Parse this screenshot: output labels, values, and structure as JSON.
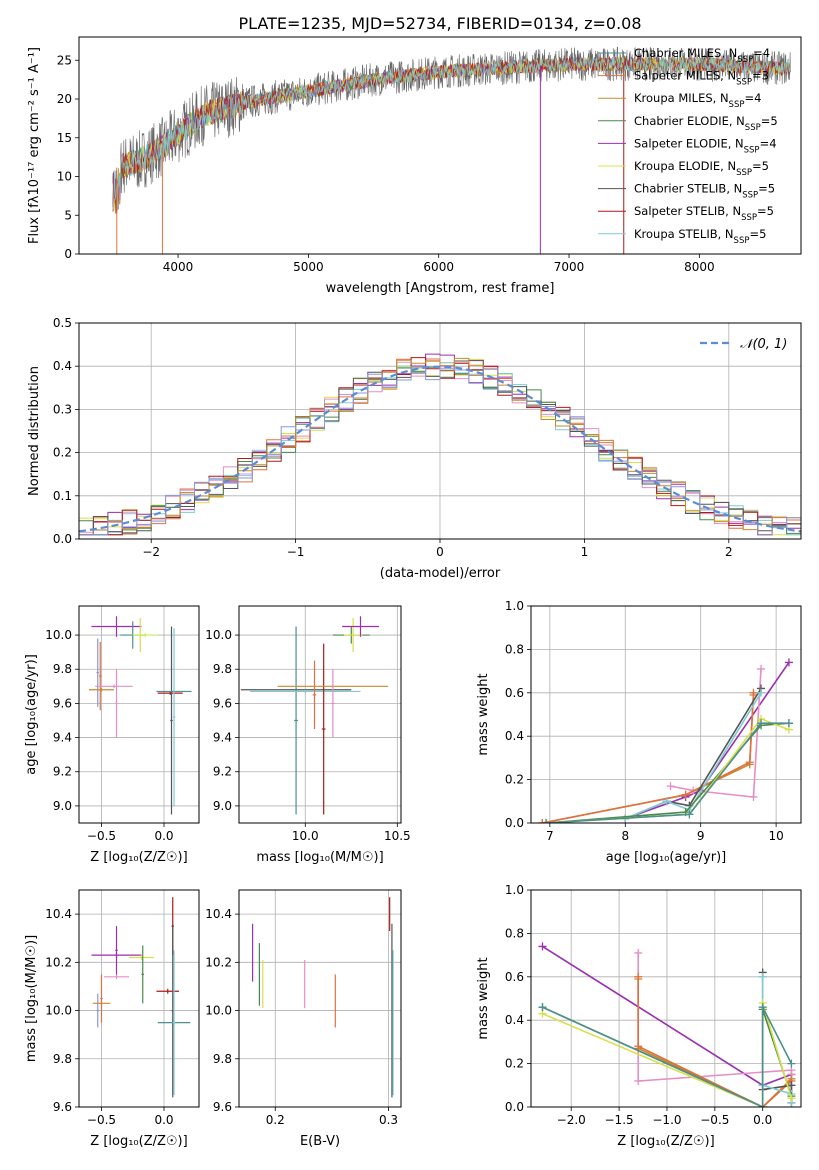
{
  "figure_title": "PLATE=1235, MJD=52734, FIBERID=0134, z=0.08",
  "colors": {
    "axis": "#000000",
    "grid": "#b0b0b0",
    "gauss": "#5b8dd6"
  },
  "chart_data": [
    {
      "id": "spectrum",
      "type": "line",
      "title": "PLATE=1235, MJD=52734, FIBERID=0134, z=0.08",
      "xlabel": "wavelength [Angstrom, rest frame]",
      "ylabel": "Flux [fλ10⁻¹⁷ erg cm⁻² s⁻¹ A⁻¹]",
      "xlim": [
        3240,
        8780
      ],
      "ylim": [
        0,
        28
      ],
      "xticks": [
        4000,
        5000,
        6000,
        7000,
        8000
      ],
      "yticks": [
        0,
        5,
        10,
        15,
        20,
        25
      ],
      "grid": false,
      "legend_position": "top-right",
      "continuum": [
        [
          3500,
          11
        ],
        [
          3700,
          12
        ],
        [
          3900,
          14
        ],
        [
          4000,
          15.5
        ],
        [
          4200,
          18
        ],
        [
          4500,
          19.5
        ],
        [
          5000,
          21
        ],
        [
          5500,
          22.5
        ],
        [
          6000,
          23.5
        ],
        [
          6500,
          24
        ],
        [
          7000,
          24.5
        ],
        [
          7500,
          24.5
        ],
        [
          8000,
          24.5
        ],
        [
          8500,
          24
        ]
      ],
      "series": [
        {
          "name": "Chabrier MILES, N_SSP=4",
          "color": "#4e8f8f"
        },
        {
          "name": "Salpeter MILES, N_SSP=3",
          "color": "#e07040"
        },
        {
          "name": "Kroupa MILES, N_SSP=4",
          "color": "#c98a2c"
        },
        {
          "name": "Chabrier ELODIE, N_SSP=5",
          "color": "#4a8a4a"
        },
        {
          "name": "Salpeter ELODIE, N_SSP=4",
          "color": "#9a2fb0"
        },
        {
          "name": "Kroupa ELODIE, N_SSP=5",
          "color": "#d6e04a"
        },
        {
          "name": "Chabrier STELIB, N_SSP=5",
          "color": "#555555"
        },
        {
          "name": "Salpeter STELIB, N_SSP=5",
          "color": "#b01818"
        },
        {
          "name": "Kroupa STELIB, N_SSP=5",
          "color": "#7ecbd6"
        }
      ]
    },
    {
      "id": "histogram",
      "type": "line",
      "xlabel": "(data-model)/error",
      "ylabel": "Normed distribution",
      "xlim": [
        -2.5,
        2.5
      ],
      "ylim": [
        0,
        0.5
      ],
      "xticks": [
        -2,
        -1,
        0,
        1,
        2
      ],
      "yticks": [
        0.0,
        0.1,
        0.2,
        0.3,
        0.4,
        0.5
      ],
      "grid": true,
      "legend_position": "top-right",
      "gaussian_label": "𝒩(0, 1)",
      "bin_width": 0.1
    },
    {
      "id": "age_vs_Z",
      "type": "scatter",
      "xlabel": "Z [log₁₀(Z/Z☉)]",
      "ylabel": "age  [log₁₀(age/yr)]",
      "xlim": [
        -0.68,
        0.28
      ],
      "ylim": [
        8.9,
        10.17
      ],
      "xticks": [
        -0.5,
        0.0
      ],
      "yticks": [
        9.0,
        9.2,
        9.4,
        9.6,
        9.8,
        10.0
      ],
      "grid": true,
      "points": [
        {
          "x": -0.53,
          "y": 9.78,
          "xerr": 0.01,
          "yerr": 0.2,
          "color": "#8899dd"
        },
        {
          "x": -0.51,
          "y": 9.76,
          "xerr": 0.01,
          "yerr": 0.2,
          "color": "#e07040"
        },
        {
          "x": -0.5,
          "y": 9.68,
          "xerr": 0.1,
          "yerr": 0.01,
          "color": "#c98a2c"
        },
        {
          "x": -0.4,
          "y": 9.7,
          "xerr": 0.15,
          "yerr": 0.01,
          "color": "#e58fc4"
        },
        {
          "x": -0.38,
          "y": 9.6,
          "xerr": 0.01,
          "yerr": 0.2,
          "color": "#e58fc4"
        },
        {
          "x": -0.38,
          "y": 10.05,
          "xerr": 0.2,
          "yerr": 0.06,
          "color": "#9a2fb0"
        },
        {
          "x": -0.25,
          "y": 10.0,
          "xerr": 0.1,
          "yerr": 0.08,
          "color": "#4e8f8f"
        },
        {
          "x": -0.19,
          "y": 10.0,
          "xerr": 0.05,
          "yerr": 0.1,
          "color": "#d6e04a"
        },
        {
          "x": -0.15,
          "y": 10.0,
          "xerr": 0.1,
          "yerr": 0.01,
          "color": "#c9ed55"
        },
        {
          "x": 0.05,
          "y": 9.66,
          "xerr": 0.1,
          "yerr": 0.01,
          "color": "#b01818"
        },
        {
          "x": 0.06,
          "y": 9.5,
          "xerr": 0.01,
          "yerr": 0.55,
          "color": "#555555"
        },
        {
          "x": 0.08,
          "y": 9.67,
          "xerr": 0.14,
          "yerr": 0.01,
          "color": "#4e8f8f"
        },
        {
          "x": 0.08,
          "y": 9.52,
          "xerr": 0.01,
          "yerr": 0.52,
          "color": "#7ecbd6"
        }
      ]
    },
    {
      "id": "age_vs_mass",
      "type": "scatter",
      "xlabel": "mass [log₁₀(M/M☉)]",
      "ylabel": "",
      "xlim": [
        9.64,
        10.52
      ],
      "ylim": [
        8.9,
        10.17
      ],
      "xticks": [
        10.0,
        10.5
      ],
      "yticks": [
        9.0,
        9.2,
        9.4,
        9.6,
        9.8,
        10.0
      ],
      "grid": true,
      "points": [
        {
          "x": 9.95,
          "y": 9.68,
          "xerr": 0.3,
          "yerr": 0.01,
          "color": "#555555"
        },
        {
          "x": 9.95,
          "y": 9.5,
          "xerr": 0.01,
          "yerr": 0.55,
          "color": "#4e8f8f"
        },
        {
          "x": 10.0,
          "y": 9.67,
          "xerr": 0.3,
          "yerr": 0.01,
          "color": "#7ecbd6"
        },
        {
          "x": 10.05,
          "y": 9.65,
          "xerr": 0.01,
          "yerr": 0.2,
          "color": "#e07040"
        },
        {
          "x": 10.1,
          "y": 9.45,
          "xerr": 0.01,
          "yerr": 0.5,
          "color": "#b01818"
        },
        {
          "x": 10.15,
          "y": 9.7,
          "xerr": 0.3,
          "yerr": 0.01,
          "color": "#c98a2c"
        },
        {
          "x": 10.15,
          "y": 9.6,
          "xerr": 0.01,
          "yerr": 0.2,
          "color": "#e58fc4"
        },
        {
          "x": 10.25,
          "y": 10.0,
          "xerr": 0.1,
          "yerr": 0.05,
          "color": "#4a8a4a"
        },
        {
          "x": 10.26,
          "y": 10.0,
          "xerr": 0.05,
          "yerr": 0.1,
          "color": "#d6e04a"
        },
        {
          "x": 10.3,
          "y": 10.05,
          "xerr": 0.1,
          "yerr": 0.06,
          "color": "#9a2fb0"
        }
      ]
    },
    {
      "id": "weight_vs_age",
      "type": "line",
      "xlabel": "age  [log₁₀(age/yr)]",
      "ylabel": "mass weight",
      "xlim": [
        6.75,
        10.33
      ],
      "ylim": [
        0,
        1.0
      ],
      "xticks": [
        7,
        8,
        9,
        10
      ],
      "yticks": [
        0.0,
        0.2,
        0.4,
        0.6,
        0.8,
        1.0
      ],
      "grid": true,
      "series": [
        {
          "color": "#9a2fb0",
          "x": [
            8.0,
            8.8,
            9.0,
            10.17
          ],
          "y": [
            0.02,
            0.12,
            0.15,
            0.74
          ]
        },
        {
          "color": "#e58fc4",
          "x": [
            8.6,
            8.9,
            9.7,
            9.8
          ],
          "y": [
            0.17,
            0.15,
            0.12,
            0.71
          ]
        },
        {
          "color": "#c98a2c",
          "x": [
            6.9,
            8.8,
            9.65,
            9.7
          ],
          "y": [
            0.0,
            0.13,
            0.27,
            0.59
          ]
        },
        {
          "color": "#e07040",
          "x": [
            6.9,
            8.8,
            9.65,
            9.7
          ],
          "y": [
            0.0,
            0.13,
            0.28,
            0.6
          ]
        },
        {
          "color": "#555555",
          "x": [
            8.0,
            8.55,
            8.85,
            9.8
          ],
          "y": [
            0.02,
            0.1,
            0.08,
            0.62
          ]
        },
        {
          "color": "#7ecbd6",
          "x": [
            8.0,
            8.55,
            8.85,
            9.8
          ],
          "y": [
            0.02,
            0.1,
            0.06,
            0.6
          ]
        },
        {
          "color": "#4a8a4a",
          "x": [
            6.95,
            8.8,
            9.8,
            10.17
          ],
          "y": [
            0.0,
            0.05,
            0.45,
            0.46
          ]
        },
        {
          "color": "#d6e04a",
          "x": [
            6.95,
            8.85,
            9.8,
            10.17
          ],
          "y": [
            0.0,
            0.04,
            0.48,
            0.43
          ]
        },
        {
          "color": "#4e8f8f",
          "x": [
            6.95,
            8.85,
            9.8,
            10.17
          ],
          "y": [
            0.0,
            0.04,
            0.46,
            0.46
          ]
        }
      ]
    },
    {
      "id": "mass_vs_Z",
      "type": "scatter",
      "xlabel": "Z [log₁₀(Z/Z☉)]",
      "ylabel": "mass [log₁₀(M/M☉)]",
      "xlim": [
        -0.68,
        0.28
      ],
      "ylim": [
        9.6,
        10.5
      ],
      "xticks": [
        -0.5,
        0.0
      ],
      "yticks": [
        9.6,
        9.8,
        10.0,
        10.2,
        10.4
      ],
      "grid": true,
      "points": [
        {
          "x": -0.53,
          "y": 10.0,
          "xerr": 0.01,
          "yerr": 0.07,
          "color": "#8899dd"
        },
        {
          "x": -0.5,
          "y": 10.03,
          "xerr": 0.07,
          "yerr": 0.01,
          "color": "#c98a2c"
        },
        {
          "x": -0.5,
          "y": 10.05,
          "xerr": 0.01,
          "yerr": 0.1,
          "color": "#e07040"
        },
        {
          "x": -0.38,
          "y": 10.14,
          "xerr": 0.1,
          "yerr": 0.01,
          "color": "#e58fc4"
        },
        {
          "x": -0.38,
          "y": 10.23,
          "xerr": 0.2,
          "yerr": 0.01,
          "color": "#9a2fb0"
        },
        {
          "x": -0.38,
          "y": 10.25,
          "xerr": 0.01,
          "yerr": 0.1,
          "color": "#9a2fb0"
        },
        {
          "x": -0.18,
          "y": 10.22,
          "xerr": 0.1,
          "yerr": 0.01,
          "color": "#d6e04a"
        },
        {
          "x": -0.17,
          "y": 10.15,
          "xerr": 0.01,
          "yerr": 0.12,
          "color": "#4a8a4a"
        },
        {
          "x": 0.03,
          "y": 10.08,
          "xerr": 0.09,
          "yerr": 0.01,
          "color": "#b01818"
        },
        {
          "x": 0.07,
          "y": 10.35,
          "xerr": 0.01,
          "yerr": 0.12,
          "color": "#b01818"
        },
        {
          "x": 0.07,
          "y": 10.0,
          "xerr": 0.01,
          "yerr": 0.36,
          "color": "#555555"
        },
        {
          "x": 0.08,
          "y": 9.95,
          "xerr": 0.13,
          "yerr": 0.01,
          "color": "#4e8f8f"
        },
        {
          "x": 0.08,
          "y": 9.95,
          "xerr": 0.01,
          "yerr": 0.3,
          "color": "#7ecbd6"
        }
      ]
    },
    {
      "id": "mass_vs_ebv",
      "type": "scatter",
      "xlabel": "E(B-V)",
      "ylabel": "",
      "xlim": [
        0.168,
        0.311
      ],
      "ylim": [
        9.6,
        10.5
      ],
      "xticks": [
        0.2,
        0.3
      ],
      "yticks": [
        9.6,
        9.8,
        10.0,
        10.2,
        10.4
      ],
      "grid": true,
      "points": [
        {
          "x": 0.18,
          "y": 10.24,
          "xerr": 0.0,
          "yerr": 0.12,
          "color": "#9a2fb0"
        },
        {
          "x": 0.186,
          "y": 10.15,
          "xerr": 0.0,
          "yerr": 0.13,
          "color": "#4a8a4a"
        },
        {
          "x": 0.189,
          "y": 10.11,
          "xerr": 0.0,
          "yerr": 0.1,
          "color": "#d6e04a"
        },
        {
          "x": 0.226,
          "y": 10.11,
          "xerr": 0.0,
          "yerr": 0.1,
          "color": "#e58fc4"
        },
        {
          "x": 0.253,
          "y": 10.04,
          "xerr": 0.0,
          "yerr": 0.11,
          "color": "#e07040"
        },
        {
          "x": 0.301,
          "y": 10.4,
          "xerr": 0.0,
          "yerr": 0.07,
          "color": "#b01818"
        },
        {
          "x": 0.303,
          "y": 10.0,
          "xerr": 0.0,
          "yerr": 0.36,
          "color": "#555555"
        },
        {
          "x": 0.304,
          "y": 9.95,
          "xerr": 0.0,
          "yerr": 0.3,
          "color": "#7ecbd6"
        }
      ]
    },
    {
      "id": "weight_vs_Z",
      "type": "line",
      "xlabel": "Z [log₁₀(Z/Z☉)]",
      "ylabel": "mass weight",
      "xlim": [
        -2.42,
        0.4
      ],
      "ylim": [
        0,
        1.0
      ],
      "xticks": [
        -2.0,
        -1.5,
        -1.0,
        -0.5,
        0.0
      ],
      "yticks": [
        0.0,
        0.2,
        0.4,
        0.6,
        0.8,
        1.0
      ],
      "grid": true,
      "series": [
        {
          "color": "#9a2fb0",
          "x": [
            -2.3,
            0.0,
            0.3,
            0.3
          ],
          "y": [
            0.74,
            0.1,
            0.15,
            0.02
          ]
        },
        {
          "color": "#e58fc4",
          "x": [
            -1.3,
            -1.3,
            0.3,
            0.3
          ],
          "y": [
            0.71,
            0.12,
            0.17,
            0.15
          ]
        },
        {
          "color": "#c98a2c",
          "x": [
            -1.3,
            -1.3,
            0.0,
            0.3
          ],
          "y": [
            0.59,
            0.27,
            0.0,
            0.13
          ]
        },
        {
          "color": "#e07040",
          "x": [
            -1.3,
            -1.3,
            0.0,
            0.3
          ],
          "y": [
            0.6,
            0.28,
            0.0,
            0.12
          ]
        },
        {
          "color": "#555555",
          "x": [
            0.0,
            0.0,
            0.3,
            0.3
          ],
          "y": [
            0.62,
            0.08,
            0.1,
            0.02
          ]
        },
        {
          "color": "#7ecbd6",
          "x": [
            0.0,
            0.0,
            0.3,
            0.3
          ],
          "y": [
            0.6,
            0.1,
            0.06,
            0.02
          ]
        },
        {
          "color": "#4a8a4a",
          "x": [
            -2.3,
            0.0,
            0.0,
            0.3
          ],
          "y": [
            0.46,
            0.0,
            0.45,
            0.05
          ]
        },
        {
          "color": "#d6e04a",
          "x": [
            -2.3,
            0.0,
            0.0,
            0.3
          ],
          "y": [
            0.43,
            0.0,
            0.48,
            0.04
          ]
        },
        {
          "color": "#4e8f8f",
          "x": [
            -2.3,
            0.0,
            0.0,
            0.3
          ],
          "y": [
            0.46,
            0.0,
            0.46,
            0.2
          ]
        }
      ]
    }
  ]
}
